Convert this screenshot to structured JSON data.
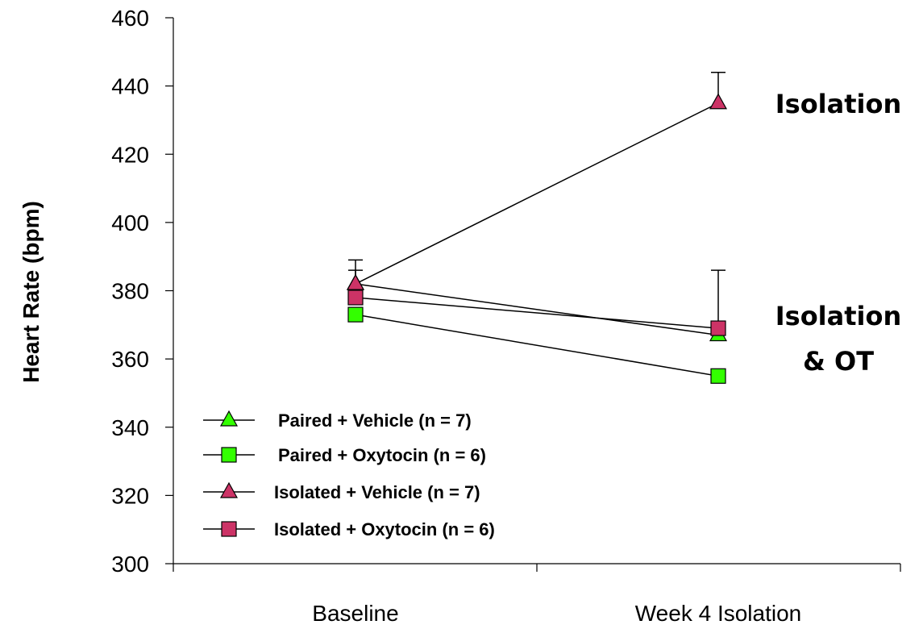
{
  "chart_data": {
    "type": "line",
    "ylabel": "Heart Rate (bpm)",
    "xlabel": "",
    "ylim": [
      300,
      460
    ],
    "yticks": [
      300,
      320,
      340,
      360,
      380,
      400,
      420,
      440,
      460
    ],
    "categories": [
      "Baseline",
      "Week 4 Isolation"
    ],
    "grid": false,
    "legend_position": "bottom-left",
    "series": [
      {
        "name": "Paired + Vehicle  (n = 7)",
        "marker": "triangle",
        "color": "#33ff00",
        "values": [
          382,
          367
        ],
        "error": [
          7,
          null
        ]
      },
      {
        "name": "Paired + Oxytocin (n = 6)",
        "marker": "square",
        "color": "#33ff00",
        "values": [
          373,
          355
        ],
        "error": [
          null,
          null
        ]
      },
      {
        "name": "Isolated + Vehicle (n = 7)",
        "marker": "triangle",
        "color": "#cc3366",
        "values": [
          382,
          435
        ],
        "error": [
          4,
          9
        ]
      },
      {
        "name": "Isolated + Oxytocin (n = 6)",
        "marker": "square",
        "color": "#cc3366",
        "values": [
          378,
          369
        ],
        "error": [
          null,
          17
        ]
      }
    ],
    "annotations": [
      {
        "lines": [
          "Isolation"
        ],
        "near": "Week 4 Isolation upper series"
      },
      {
        "lines": [
          "Isolation",
          "& OT"
        ],
        "near": "Week 4 Isolation lower series"
      }
    ]
  }
}
